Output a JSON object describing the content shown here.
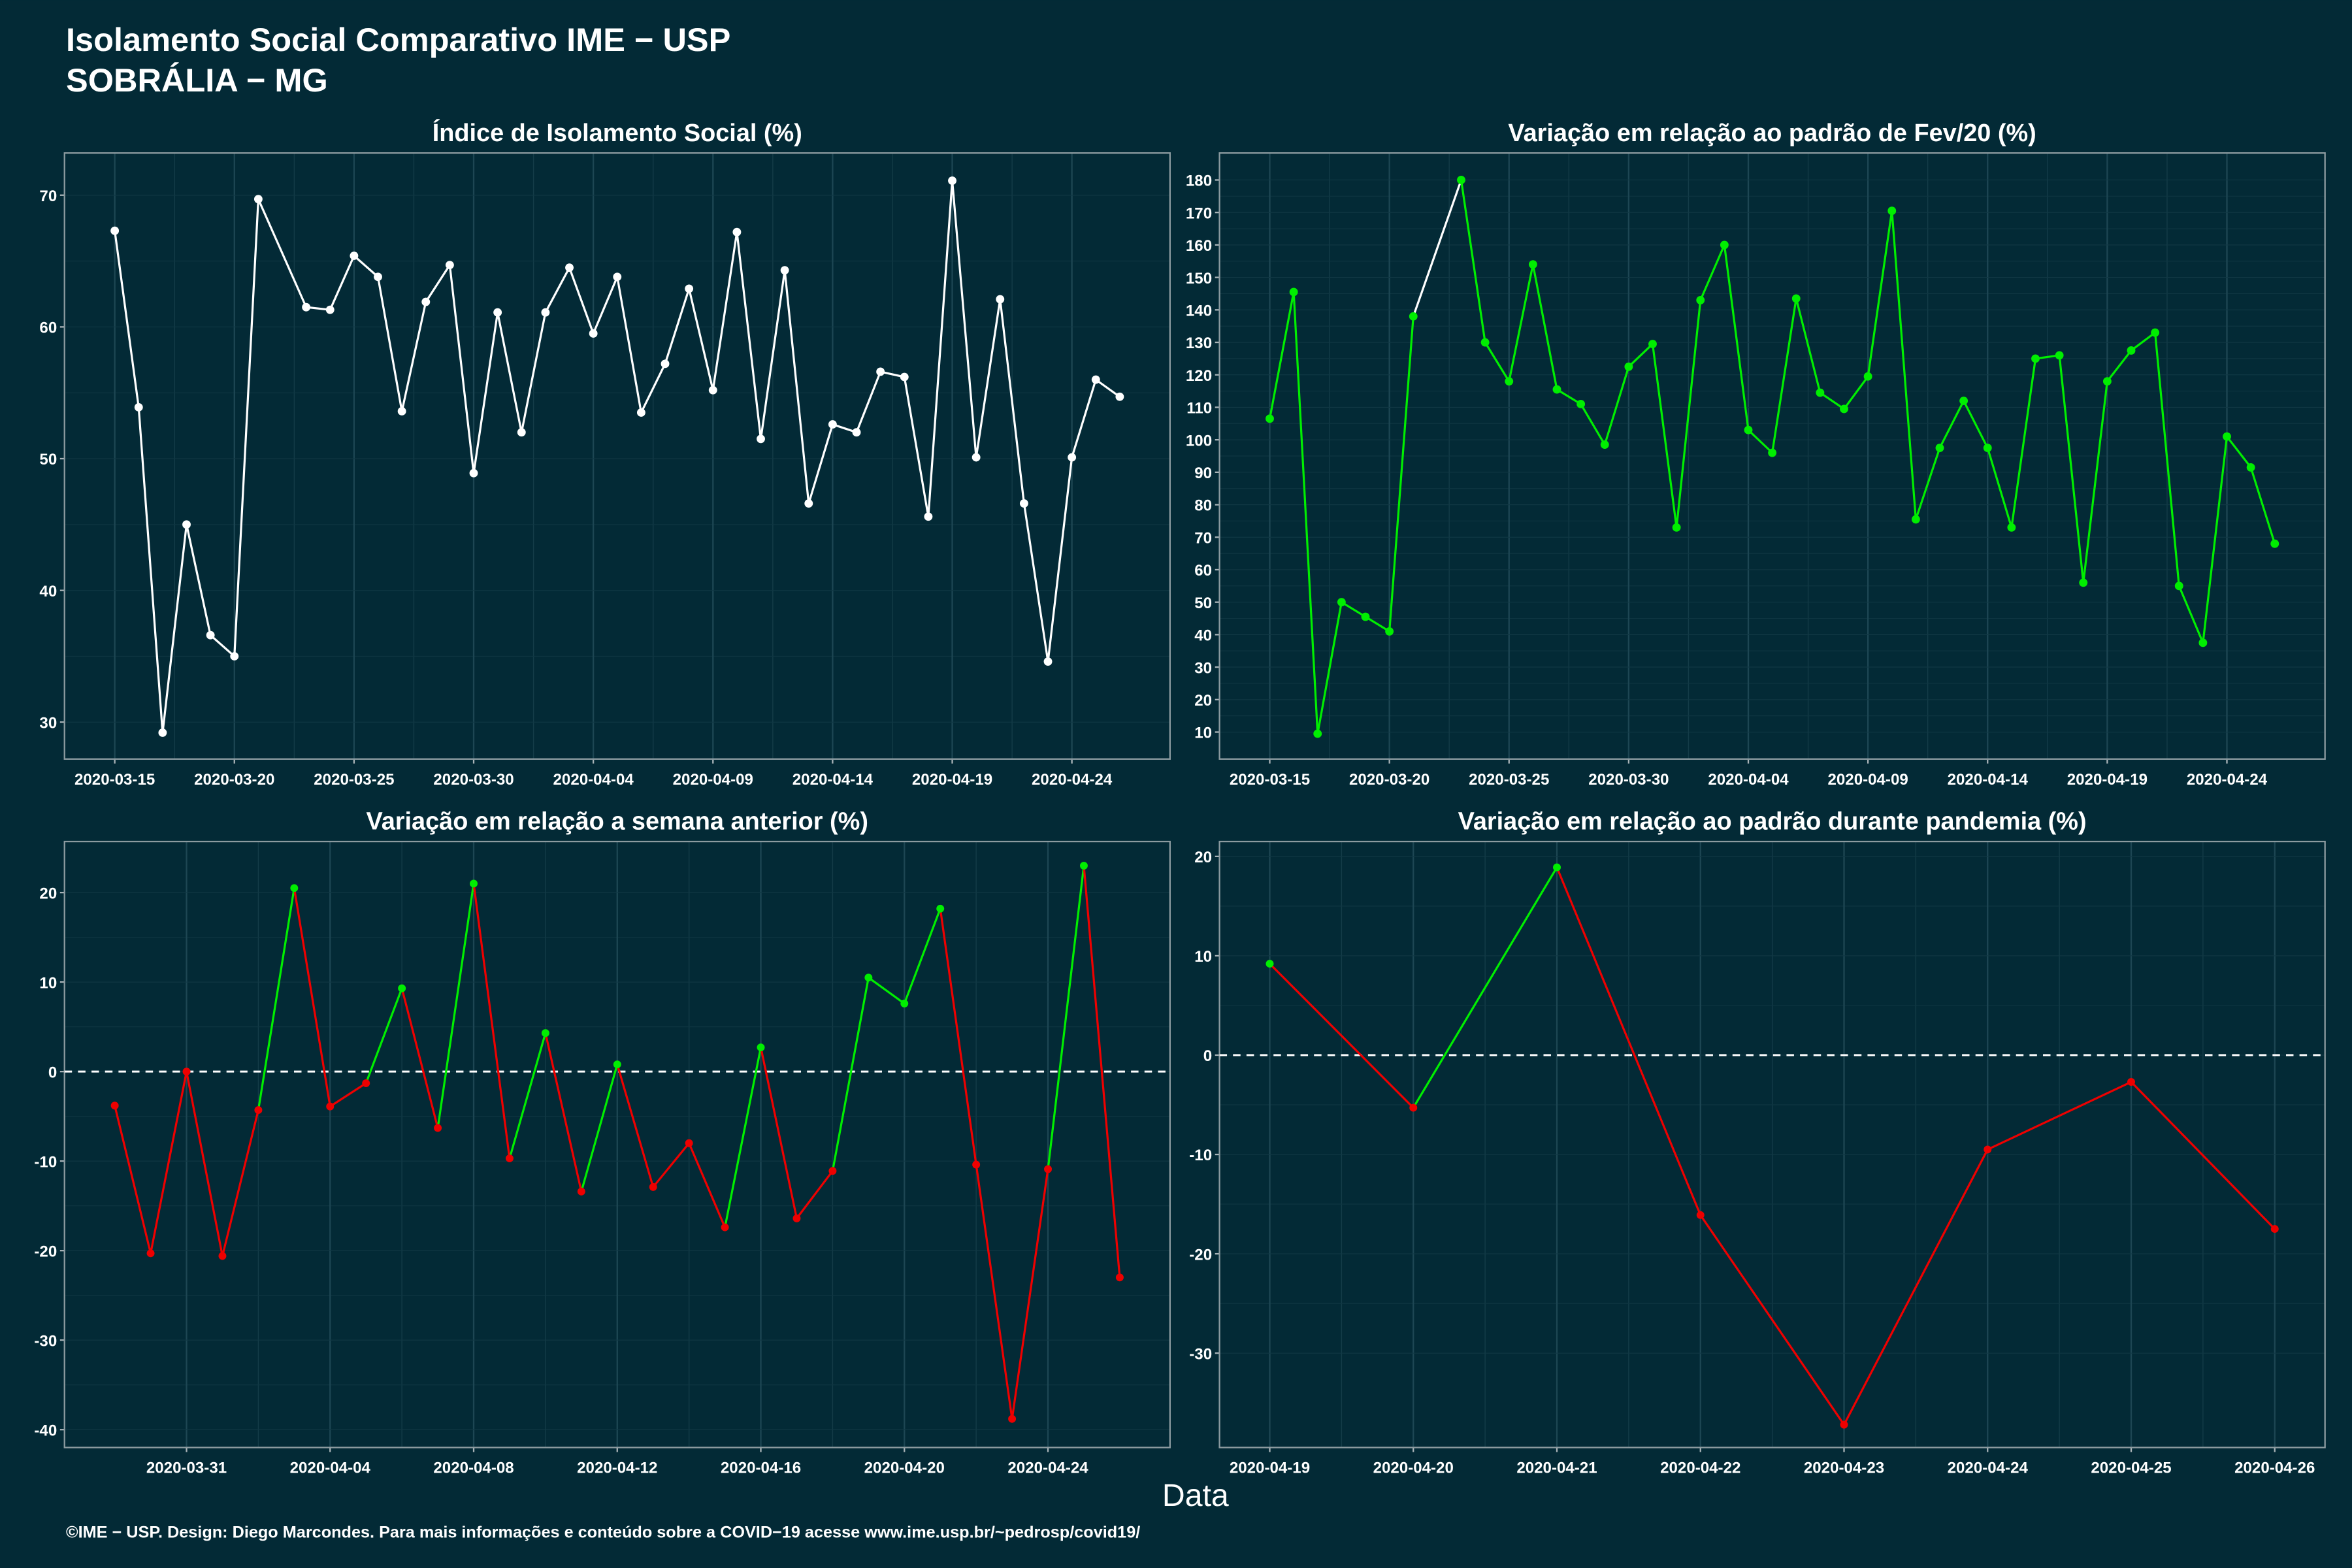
{
  "header": {
    "title": "Isolamento Social Comparativo IME − USP",
    "subtitle": "SOBRÁLIA − MG"
  },
  "x_label": "Data",
  "footer": "©IME − USP. Design: Diego Marcondes. Para mais informações e conteúdo sobre a COVID−19 acesse www.ime.usp.br/~pedrosp/covid19/",
  "chart_data": [
    {
      "type": "line",
      "title": "Índice de Isolamento Social (%)",
      "color": "#ffffff",
      "gap_color": "#ffffff",
      "x": [
        "2020-03-15",
        "2020-03-16",
        "2020-03-17",
        "2020-03-18",
        "2020-03-19",
        "2020-03-20",
        "2020-03-21",
        "2020-03-23",
        "2020-03-24",
        "2020-03-25",
        "2020-03-26",
        "2020-03-27",
        "2020-03-28",
        "2020-03-29",
        "2020-03-30",
        "2020-03-31",
        "2020-04-01",
        "2020-04-02",
        "2020-04-03",
        "2020-04-04",
        "2020-04-05",
        "2020-04-06",
        "2020-04-07",
        "2020-04-08",
        "2020-04-09",
        "2020-04-10",
        "2020-04-11",
        "2020-04-12",
        "2020-04-13",
        "2020-04-14",
        "2020-04-15",
        "2020-04-16",
        "2020-04-17",
        "2020-04-18",
        "2020-04-19",
        "2020-04-20",
        "2020-04-21",
        "2020-04-22",
        "2020-04-23",
        "2020-04-24",
        "2020-04-25",
        "2020-04-26"
      ],
      "values": [
        67.3,
        53.9,
        29.2,
        45,
        36.6,
        35,
        69.7,
        61.5,
        61.3,
        65.4,
        63.8,
        53.6,
        61.9,
        64.7,
        48.9,
        61.1,
        52,
        61.1,
        64.5,
        59.5,
        63.8,
        53.5,
        57.2,
        62.9,
        55.2,
        67.2,
        51.5,
        64.3,
        46.6,
        52.6,
        52,
        56.6,
        56.2,
        45.6,
        71.1,
        50.1,
        62.1,
        46.6,
        34.6,
        50.1,
        56,
        54.7
      ],
      "xticks": [
        "2020-03-15",
        "2020-03-20",
        "2020-03-25",
        "2020-03-30",
        "2020-04-04",
        "2020-04-09",
        "2020-04-14",
        "2020-04-19",
        "2020-04-24"
      ],
      "ylim": [
        27.2,
        73.2
      ],
      "yticks": [
        30,
        40,
        50,
        60,
        70
      ],
      "grid": true
    },
    {
      "type": "line",
      "title": "Variação em relação ao padrão de Fev/20 (%)",
      "color": "#00ee00",
      "gap_color": "#ffffff",
      "x": [
        "2020-03-15",
        "2020-03-16",
        "2020-03-17",
        "2020-03-18",
        "2020-03-19",
        "2020-03-20",
        "2020-03-21",
        "2020-03-23",
        "2020-03-24",
        "2020-03-25",
        "2020-03-26",
        "2020-03-27",
        "2020-03-28",
        "2020-03-29",
        "2020-03-30",
        "2020-03-31",
        "2020-04-01",
        "2020-04-02",
        "2020-04-03",
        "2020-04-04",
        "2020-04-05",
        "2020-04-06",
        "2020-04-07",
        "2020-04-08",
        "2020-04-09",
        "2020-04-10",
        "2020-04-11",
        "2020-04-12",
        "2020-04-13",
        "2020-04-14",
        "2020-04-15",
        "2020-04-16",
        "2020-04-17",
        "2020-04-18",
        "2020-04-19",
        "2020-04-20",
        "2020-04-21",
        "2020-04-22",
        "2020-04-23",
        "2020-04-24",
        "2020-04-25",
        "2020-04-26"
      ],
      "values": [
        106.5,
        145.5,
        9.5,
        50,
        45.5,
        41,
        138,
        180,
        130,
        118,
        154,
        115.5,
        111,
        98.5,
        122.5,
        129.5,
        73,
        143,
        160,
        103,
        96,
        143.5,
        114.5,
        109.5,
        119.5,
        170.5,
        75.5,
        97.5,
        112,
        97.5,
        73,
        125,
        126,
        56,
        118,
        127.5,
        133,
        55,
        37.5,
        101,
        91.5,
        68
      ],
      "xticks": [
        "2020-03-15",
        "2020-03-20",
        "2020-03-25",
        "2020-03-30",
        "2020-04-04",
        "2020-04-09",
        "2020-04-14",
        "2020-04-19",
        "2020-04-24"
      ],
      "ylim": [
        1.7,
        188.3
      ],
      "yticks": [
        10,
        20,
        30,
        40,
        50,
        60,
        70,
        80,
        90,
        100,
        110,
        120,
        130,
        140,
        150,
        160,
        170,
        180
      ],
      "grid": true
    },
    {
      "type": "signed_line",
      "title": "Variação em relação a semana anterior (%)",
      "positive_color": "#00ee00",
      "negative_color": "#ee0000",
      "reference_line": 0,
      "x": [
        "2020-03-29",
        "2020-03-30",
        "2020-03-31",
        "2020-04-01",
        "2020-04-02",
        "2020-04-03",
        "2020-04-04",
        "2020-04-05",
        "2020-04-06",
        "2020-04-07",
        "2020-04-08",
        "2020-04-09",
        "2020-04-10",
        "2020-04-11",
        "2020-04-12",
        "2020-04-13",
        "2020-04-14",
        "2020-04-15",
        "2020-04-16",
        "2020-04-17",
        "2020-04-18",
        "2020-04-19",
        "2020-04-20",
        "2020-04-21",
        "2020-04-22",
        "2020-04-23",
        "2020-04-24",
        "2020-04-25",
        "2020-04-26"
      ],
      "values": [
        -3.8,
        -20.3,
        0,
        -20.6,
        -4.3,
        20.5,
        -3.9,
        -1.3,
        9.3,
        -6.3,
        21,
        -9.7,
        4.3,
        -13.4,
        0.8,
        -12.9,
        -8,
        -17.4,
        2.7,
        -16.4,
        -11.1,
        10.5,
        7.6,
        18.2,
        -10.4,
        -38.8,
        -10.9,
        23,
        -23
      ],
      "xticks": [
        "2020-03-31",
        "2020-04-04",
        "2020-04-08",
        "2020-04-12",
        "2020-04-16",
        "2020-04-20",
        "2020-04-24"
      ],
      "ylim": [
        -42,
        25.7
      ],
      "yticks": [
        -40,
        -30,
        -20,
        -10,
        0,
        10,
        20
      ],
      "grid": true
    },
    {
      "type": "signed_line",
      "title": "Variação em relação ao padrão durante pandemia (%)",
      "positive_color": "#00ee00",
      "negative_color": "#ee0000",
      "reference_line": 0,
      "x": [
        "2020-04-19",
        "2020-04-20",
        "2020-04-21",
        "2020-04-22",
        "2020-04-23",
        "2020-04-24",
        "2020-04-25",
        "2020-04-26"
      ],
      "values": [
        9.2,
        -5.3,
        18.9,
        -16.1,
        -37.2,
        -9.5,
        -2.7,
        -17.5
      ],
      "xticks": [
        "2020-04-19",
        "2020-04-20",
        "2020-04-21",
        "2020-04-22",
        "2020-04-23",
        "2020-04-24",
        "2020-04-25",
        "2020-04-26"
      ],
      "ylim": [
        -39.5,
        21.5
      ],
      "yticks": [
        -30,
        -20,
        -10,
        0,
        10,
        20
      ],
      "grid": true
    }
  ]
}
